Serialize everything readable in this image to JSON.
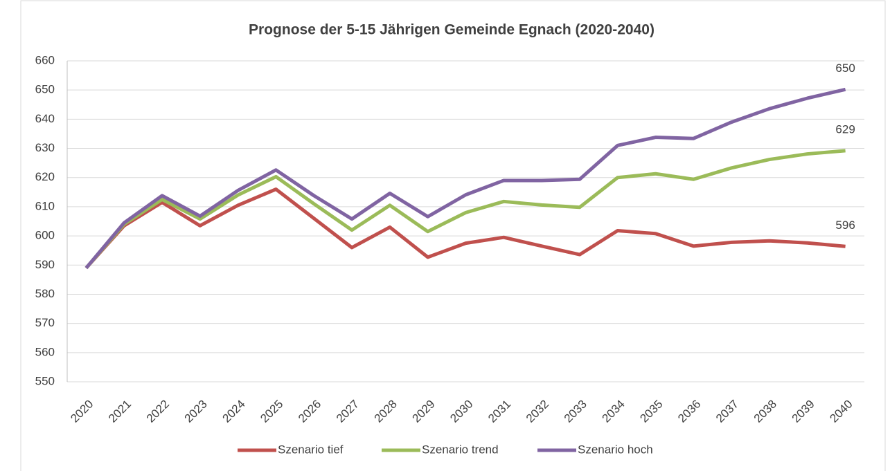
{
  "chart_data": {
    "type": "line",
    "title": "Prognose der 5-15 Jährigen Gemeinde Egnach (2020-2040)",
    "categories": [
      "2020",
      "2021",
      "2022",
      "2023",
      "2024",
      "2025",
      "2026",
      "2027",
      "2028",
      "2029",
      "2030",
      "2031",
      "2032",
      "2033",
      "2034",
      "2035",
      "2036",
      "2037",
      "2038",
      "2039",
      "2040"
    ],
    "series": [
      {
        "name": "Szenario tief",
        "color": "#c0504d",
        "values": [
          589,
          603.5,
          611.5,
          603.5,
          610.5,
          616,
          606,
          596,
          603,
          592.7,
          597.5,
          599.5,
          596.5,
          593.6,
          601.8,
          600.8,
          596.5,
          597.8,
          598.3,
          597.6,
          596.4
        ],
        "value_labels": [
          null,
          null,
          null,
          null,
          null,
          null,
          null,
          null,
          null,
          null,
          null,
          null,
          null,
          null,
          null,
          null,
          null,
          null,
          null,
          null,
          "596"
        ]
      },
      {
        "name": "Szenario trend",
        "color": "#9bbb59",
        "values": [
          589,
          604,
          612.5,
          605.8,
          614,
          620.3,
          611,
          602,
          610.5,
          601.5,
          608,
          611.8,
          610.6,
          609.8,
          620,
          621.3,
          619.4,
          623.3,
          626.2,
          628.1,
          629.2
        ],
        "value_labels": [
          null,
          null,
          null,
          null,
          null,
          null,
          null,
          null,
          null,
          null,
          null,
          null,
          null,
          null,
          null,
          null,
          null,
          null,
          null,
          null,
          "629"
        ]
      },
      {
        "name": "Szenario hoch",
        "color": "#8064a2",
        "values": [
          589,
          604.5,
          613.8,
          606.8,
          615.6,
          622.6,
          613.8,
          605.8,
          614.6,
          606.6,
          614.1,
          619,
          619,
          619.4,
          631,
          633.8,
          633.4,
          639,
          643.6,
          647.2,
          650.2
        ],
        "value_labels": [
          null,
          null,
          null,
          null,
          null,
          null,
          null,
          null,
          null,
          null,
          null,
          null,
          null,
          null,
          null,
          null,
          null,
          null,
          null,
          null,
          "650"
        ]
      }
    ],
    "ylim": [
      550,
      660
    ],
    "yticks": [
      550,
      560,
      570,
      580,
      590,
      600,
      610,
      620,
      630,
      640,
      650,
      660
    ],
    "grid": true,
    "legend": "bottom"
  }
}
